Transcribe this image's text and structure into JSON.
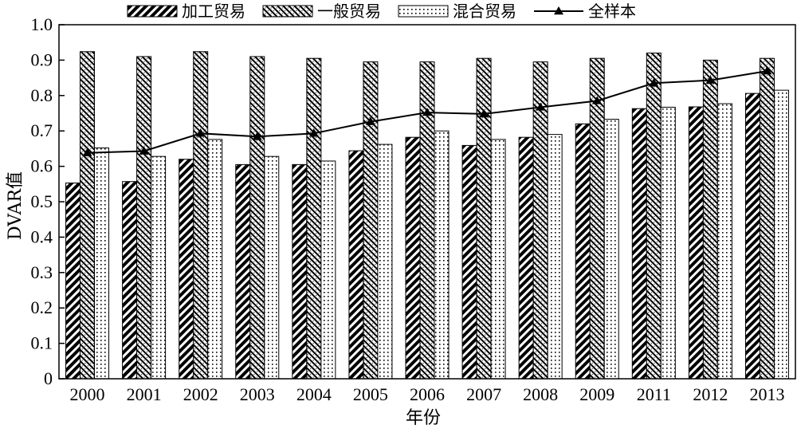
{
  "chart_data": {
    "type": "bar",
    "xlabel": "年份",
    "ylabel": "DVAR值",
    "ylim": [
      0,
      1.0
    ],
    "yticks": [
      "0",
      "0.1",
      "0.2",
      "0.3",
      "0.4",
      "0.5",
      "0.6",
      "0.7",
      "0.8",
      "0.9",
      "1.0"
    ],
    "categories": [
      "2000",
      "2001",
      "2002",
      "2003",
      "2004",
      "2005",
      "2006",
      "2007",
      "2008",
      "2009",
      "2011",
      "2012",
      "2013"
    ],
    "series": [
      {
        "name": "加工贸易",
        "kind": "bar",
        "pattern": "dense-diagonal",
        "values": [
          0.553,
          0.557,
          0.62,
          0.605,
          0.605,
          0.644,
          0.682,
          0.659,
          0.682,
          0.72,
          0.763,
          0.768,
          0.806
        ]
      },
      {
        "name": "一般贸易",
        "kind": "bar",
        "pattern": "light-diagonal",
        "values": [
          0.924,
          0.91,
          0.924,
          0.91,
          0.905,
          0.895,
          0.895,
          0.905,
          0.895,
          0.905,
          0.92,
          0.9,
          0.905
        ]
      },
      {
        "name": "混合贸易",
        "kind": "bar",
        "pattern": "dots",
        "values": [
          0.652,
          0.628,
          0.676,
          0.628,
          0.615,
          0.662,
          0.7,
          0.676,
          0.69,
          0.733,
          0.767,
          0.777,
          0.815
        ]
      },
      {
        "name": "全样本",
        "kind": "line",
        "marker": "triangle",
        "values": [
          0.638,
          0.643,
          0.693,
          0.684,
          0.693,
          0.726,
          0.752,
          0.748,
          0.767,
          0.785,
          0.835,
          0.843,
          0.869
        ]
      }
    ],
    "legend_position": "top",
    "grid": false
  }
}
